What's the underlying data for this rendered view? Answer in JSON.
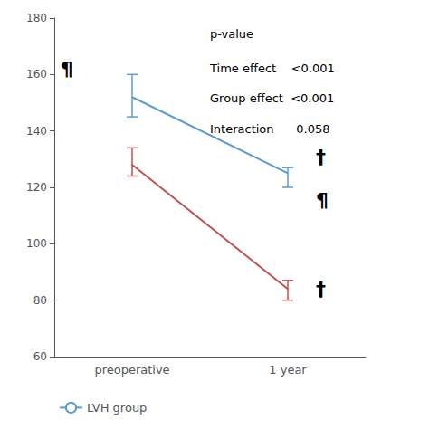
{
  "chart_data": {
    "type": "line",
    "categories": [
      "preoperative",
      "1 year"
    ],
    "series": [
      {
        "name": "LVH group",
        "color": "#5B9BD5",
        "values": [
          152,
          125
        ],
        "yerr_low": [
          7,
          5
        ],
        "yerr_high": [
          8,
          2
        ]
      },
      {
        "color": "#C0504D",
        "values": [
          128,
          84
        ],
        "yerr_low": [
          4,
          4
        ],
        "yerr_high": [
          6,
          3
        ]
      }
    ],
    "ylim": [
      60,
      180
    ],
    "yticks": [
      60,
      80,
      100,
      120,
      140,
      160,
      180
    ],
    "grid": false,
    "legend": "lower left",
    "annotations": [
      "p-value",
      "Time effect    <0.001",
      "Group effect  <0.001",
      "Interaction      0.058",
      "¶",
      "†",
      "¶",
      "†"
    ]
  }
}
